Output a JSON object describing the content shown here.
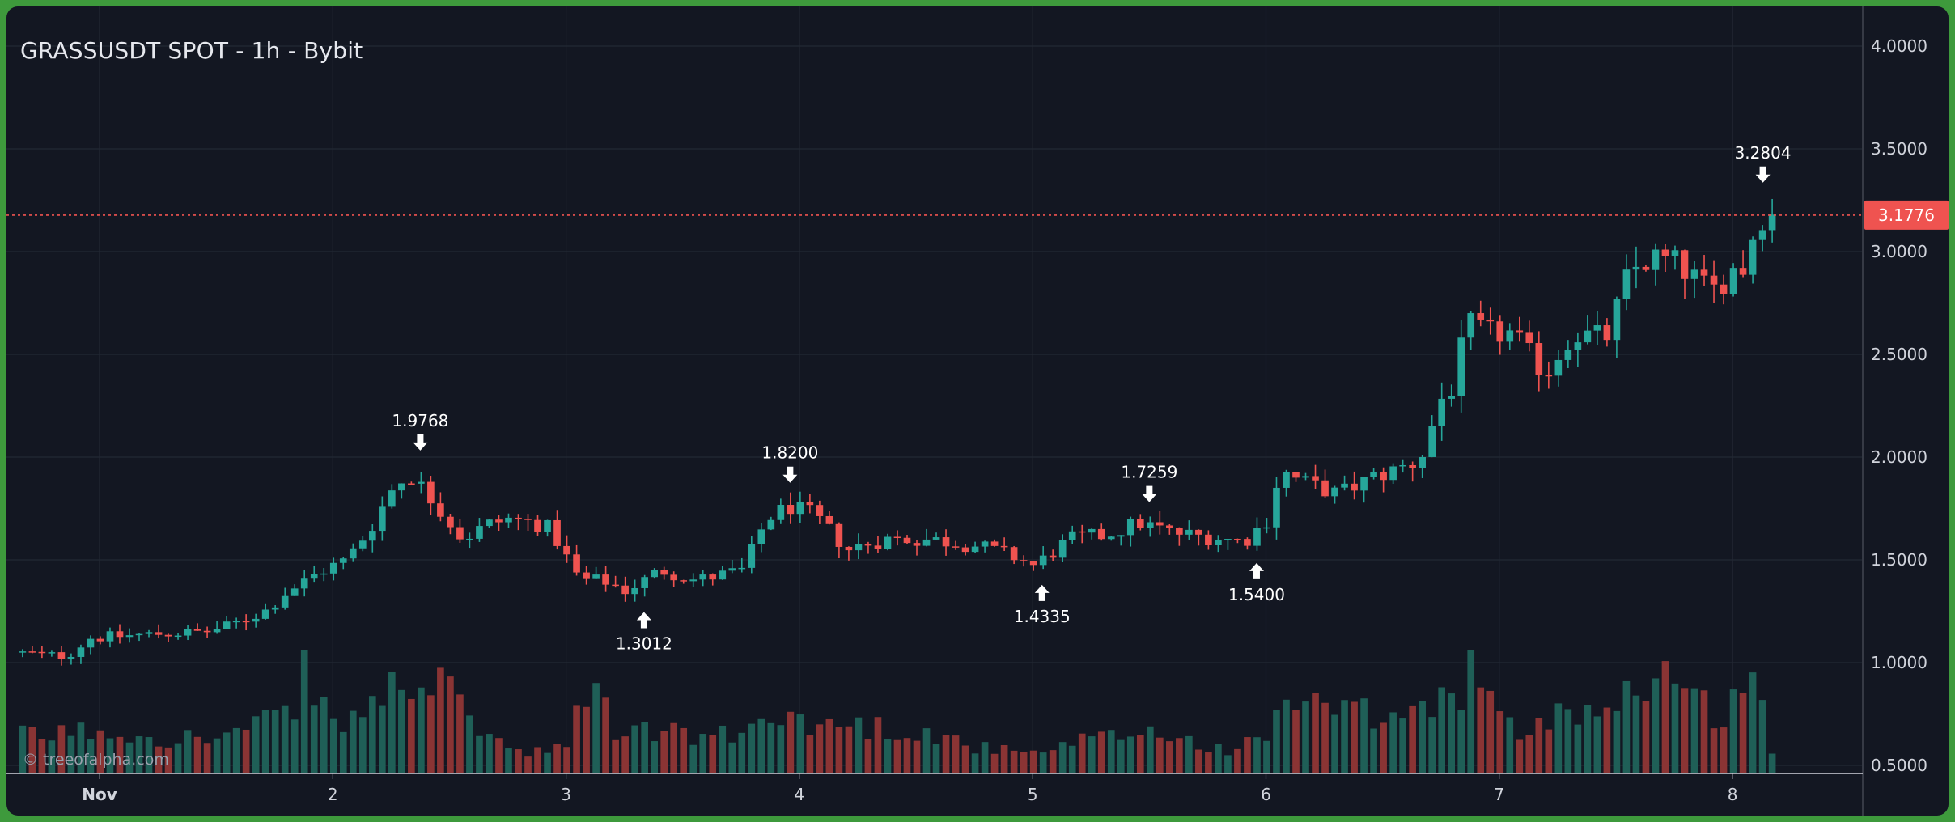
{
  "header": {
    "title": "GRASSUSDT SPOT - 1h - Bybit"
  },
  "watermark": "© treeofalpha.com",
  "colors": {
    "background": "#131722",
    "frame": "#3e9a3c",
    "up": "#26a69a",
    "down": "#ef5350",
    "volume_up": "#1f5f57",
    "volume_down": "#8a3434",
    "grid": "#232834",
    "price_line": "#ef5350"
  },
  "chart_data": {
    "type": "candlestick",
    "title": "GRASSUSDT SPOT - 1h - Bybit",
    "x_tick_labels": [
      "Nov",
      "2",
      "3",
      "4",
      "5",
      "6",
      "7",
      "8"
    ],
    "y_tick_labels": [
      "4.0000",
      "3.5000",
      "3.0000",
      "2.5000",
      "2.0000",
      "1.5000",
      "1.0000",
      "0.5000"
    ],
    "ylim": [
      0.48,
      4.12
    ],
    "xlim_days": [
      0.64,
      8.59
    ],
    "grid": true,
    "current_price": "3.1776",
    "annotations": [
      {
        "label": "1.9768",
        "day": 2.375,
        "price": 1.9768,
        "position": "above"
      },
      {
        "label": "1.3012",
        "day": 3.334,
        "price": 1.3012,
        "position": "below"
      },
      {
        "label": "1.8200",
        "day": 3.96,
        "price": 1.82,
        "position": "above"
      },
      {
        "label": "1.4335",
        "day": 5.04,
        "price": 1.4335,
        "position": "below"
      },
      {
        "label": "1.7259",
        "day": 5.5,
        "price": 1.7259,
        "position": "above"
      },
      {
        "label": "1.5400",
        "day": 5.96,
        "price": 1.54,
        "position": "below"
      },
      {
        "label": "3.2804",
        "day": 8.13,
        "price": 3.2804,
        "position": "above"
      }
    ],
    "price_keypoints": [
      [
        0.67,
        1.05
      ],
      [
        0.9,
        1.03
      ],
      [
        1.0,
        1.12
      ],
      [
        1.15,
        1.13
      ],
      [
        1.3,
        1.14
      ],
      [
        1.5,
        1.15
      ],
      [
        1.6,
        1.18
      ],
      [
        1.75,
        1.25
      ],
      [
        1.85,
        1.35
      ],
      [
        1.9,
        1.38
      ],
      [
        2.0,
        1.45
      ],
      [
        2.1,
        1.5
      ],
      [
        2.2,
        1.65
      ],
      [
        2.3,
        1.85
      ],
      [
        2.37,
        1.92
      ],
      [
        2.5,
        1.75
      ],
      [
        2.6,
        1.6
      ],
      [
        2.7,
        1.67
      ],
      [
        2.8,
        1.7
      ],
      [
        2.95,
        1.67
      ],
      [
        3.0,
        1.6
      ],
      [
        3.1,
        1.4
      ],
      [
        3.2,
        1.4
      ],
      [
        3.3,
        1.35
      ],
      [
        3.45,
        1.45
      ],
      [
        3.6,
        1.4
      ],
      [
        3.8,
        1.45
      ],
      [
        3.9,
        1.7
      ],
      [
        4.0,
        1.76
      ],
      [
        4.1,
        1.72
      ],
      [
        4.25,
        1.55
      ],
      [
        4.4,
        1.6
      ],
      [
        4.6,
        1.6
      ],
      [
        4.8,
        1.57
      ],
      [
        4.95,
        1.52
      ],
      [
        5.05,
        1.47
      ],
      [
        5.2,
        1.6
      ],
      [
        5.35,
        1.62
      ],
      [
        5.5,
        1.68
      ],
      [
        5.65,
        1.63
      ],
      [
        5.8,
        1.61
      ],
      [
        5.95,
        1.59
      ],
      [
        6.05,
        1.7
      ],
      [
        6.1,
        1.93
      ],
      [
        6.2,
        1.88
      ],
      [
        6.35,
        1.82
      ],
      [
        6.5,
        1.9
      ],
      [
        6.7,
        1.98
      ],
      [
        6.8,
        2.3
      ],
      [
        6.85,
        2.35
      ],
      [
        6.9,
        2.65
      ],
      [
        7.0,
        2.6
      ],
      [
        7.1,
        2.6
      ],
      [
        7.2,
        2.45
      ],
      [
        7.25,
        2.42
      ],
      [
        7.35,
        2.6
      ],
      [
        7.5,
        2.58
      ],
      [
        7.6,
        2.9
      ],
      [
        7.7,
        2.97
      ],
      [
        7.8,
        2.94
      ],
      [
        7.9,
        2.85
      ],
      [
        7.95,
        2.8
      ],
      [
        8.05,
        2.92
      ],
      [
        8.1,
        2.92
      ],
      [
        8.15,
        3.19
      ],
      [
        8.17,
        3.18
      ]
    ],
    "volume_keypoints": [
      [
        0.67,
        0.3
      ],
      [
        1.0,
        0.35
      ],
      [
        1.3,
        0.3
      ],
      [
        1.5,
        0.28
      ],
      [
        1.7,
        0.4
      ],
      [
        1.85,
        0.5
      ],
      [
        1.88,
        1.0
      ],
      [
        2.0,
        0.35
      ],
      [
        2.2,
        0.6
      ],
      [
        2.35,
        0.8
      ],
      [
        2.5,
        0.62
      ],
      [
        2.65,
        0.35
      ],
      [
        2.8,
        0.15
      ],
      [
        3.0,
        0.2
      ],
      [
        3.1,
        0.8
      ],
      [
        3.2,
        0.35
      ],
      [
        3.4,
        0.35
      ],
      [
        3.55,
        0.3
      ],
      [
        3.7,
        0.3
      ],
      [
        3.85,
        0.4
      ],
      [
        3.9,
        0.6
      ],
      [
        4.0,
        0.4
      ],
      [
        4.2,
        0.4
      ],
      [
        4.5,
        0.35
      ],
      [
        4.8,
        0.2
      ],
      [
        5.0,
        0.15
      ],
      [
        5.2,
        0.25
      ],
      [
        5.5,
        0.35
      ],
      [
        5.8,
        0.2
      ],
      [
        6.0,
        0.25
      ],
      [
        6.05,
        0.62
      ],
      [
        6.3,
        0.5
      ],
      [
        6.5,
        0.45
      ],
      [
        6.7,
        0.5
      ],
      [
        6.85,
        0.75
      ],
      [
        6.88,
        1.0
      ],
      [
        7.0,
        0.4
      ],
      [
        7.15,
        0.3
      ],
      [
        7.25,
        0.6
      ],
      [
        7.4,
        0.5
      ],
      [
        7.6,
        0.7
      ],
      [
        7.7,
        0.9
      ],
      [
        7.8,
        0.6
      ],
      [
        7.95,
        0.5
      ],
      [
        8.05,
        0.65
      ],
      [
        8.12,
        0.8
      ],
      [
        8.17,
        0.2
      ]
    ]
  }
}
